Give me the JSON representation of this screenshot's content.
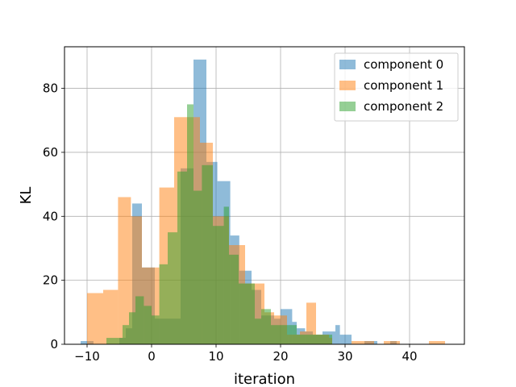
{
  "chart_data": {
    "type": "histogram",
    "title": "",
    "xlabel": "iteration",
    "ylabel": "KL",
    "xlim": [
      -13.5,
      48.5
    ],
    "ylim": [
      0,
      93
    ],
    "xticks": [
      -10,
      0,
      10,
      20,
      30,
      40
    ],
    "yticks": [
      0,
      20,
      40,
      60,
      80
    ],
    "grid": true,
    "legend_position": "top-right",
    "series": [
      {
        "name": "component 0",
        "color": "#1f77b4",
        "alpha": 0.5,
        "bins": [
          [
            -11,
            -9,
            1
          ],
          [
            -9,
            -5,
            0
          ],
          [
            -5,
            -4,
            2
          ],
          [
            -4,
            -3,
            5
          ],
          [
            -3,
            -1.5,
            44
          ],
          [
            -1.5,
            0.5,
            24
          ],
          [
            0.5,
            4.5,
            8
          ],
          [
            4.5,
            6.5,
            55
          ],
          [
            6.5,
            8.5,
            89
          ],
          [
            8.5,
            10.2,
            57
          ],
          [
            10.2,
            12.2,
            51
          ],
          [
            12.2,
            13.6,
            34
          ],
          [
            13.6,
            15.5,
            23
          ],
          [
            15.5,
            17,
            17
          ],
          [
            17,
            19,
            9
          ],
          [
            19,
            20,
            8
          ],
          [
            20,
            21.8,
            11
          ],
          [
            21.8,
            22.5,
            7
          ],
          [
            22.5,
            23.8,
            5
          ],
          [
            23.8,
            25,
            4
          ],
          [
            25,
            26.5,
            3
          ],
          [
            26.5,
            28.5,
            4
          ],
          [
            28.5,
            29.2,
            6
          ],
          [
            29.2,
            31,
            3
          ],
          [
            31,
            33,
            0
          ],
          [
            33,
            35,
            1
          ],
          [
            35,
            37,
            0
          ],
          [
            37,
            38,
            1
          ]
        ]
      },
      {
        "name": "component 1",
        "color": "#ff7f0e",
        "alpha": 0.5,
        "bins": [
          [
            -10,
            -7.5,
            16
          ],
          [
            -7.5,
            -5.2,
            17
          ],
          [
            -5.2,
            -3.2,
            46
          ],
          [
            -3.2,
            -1.5,
            40
          ],
          [
            -1.5,
            1.2,
            24
          ],
          [
            1.2,
            3.5,
            49
          ],
          [
            3.5,
            7.5,
            71
          ],
          [
            7.5,
            9.5,
            63
          ],
          [
            9.5,
            12,
            40
          ],
          [
            12,
            14.5,
            31
          ],
          [
            14.5,
            17.5,
            19
          ],
          [
            17.5,
            19,
            10
          ],
          [
            19,
            21,
            9
          ],
          [
            21,
            23,
            3
          ],
          [
            23,
            24,
            4
          ],
          [
            24,
            25.5,
            13
          ],
          [
            25.5,
            27.5,
            3
          ],
          [
            27.5,
            28,
            2
          ],
          [
            28,
            31,
            0
          ],
          [
            31,
            32,
            1
          ],
          [
            32,
            34.5,
            1
          ],
          [
            34.5,
            36,
            0
          ],
          [
            36,
            38.5,
            1
          ],
          [
            38.5,
            43,
            0
          ],
          [
            43,
            45.5,
            1
          ]
        ]
      },
      {
        "name": "component 2",
        "color": "#2ca02c",
        "alpha": 0.5,
        "bins": [
          [
            -7,
            -6,
            2
          ],
          [
            -6,
            -4.5,
            2
          ],
          [
            -4.5,
            -3.5,
            6
          ],
          [
            -3.5,
            -2.5,
            10
          ],
          [
            -2.5,
            -1.2,
            15
          ],
          [
            -1.2,
            0,
            12
          ],
          [
            0,
            1.2,
            9
          ],
          [
            1.2,
            2.5,
            25
          ],
          [
            2.5,
            4,
            35
          ],
          [
            4,
            5.5,
            54
          ],
          [
            5.5,
            6.5,
            75
          ],
          [
            6.5,
            7.8,
            48
          ],
          [
            7.8,
            9.5,
            56
          ],
          [
            9.5,
            11.2,
            37
          ],
          [
            11.2,
            12,
            43
          ],
          [
            12,
            13.5,
            28
          ],
          [
            13.5,
            16,
            19
          ],
          [
            16,
            17,
            8
          ],
          [
            17,
            18.5,
            11
          ],
          [
            18.5,
            20,
            6
          ],
          [
            20,
            21.2,
            6
          ],
          [
            21.2,
            22.5,
            6
          ],
          [
            22.5,
            24,
            3
          ],
          [
            24,
            26,
            3
          ],
          [
            26,
            28,
            3
          ]
        ]
      }
    ]
  }
}
